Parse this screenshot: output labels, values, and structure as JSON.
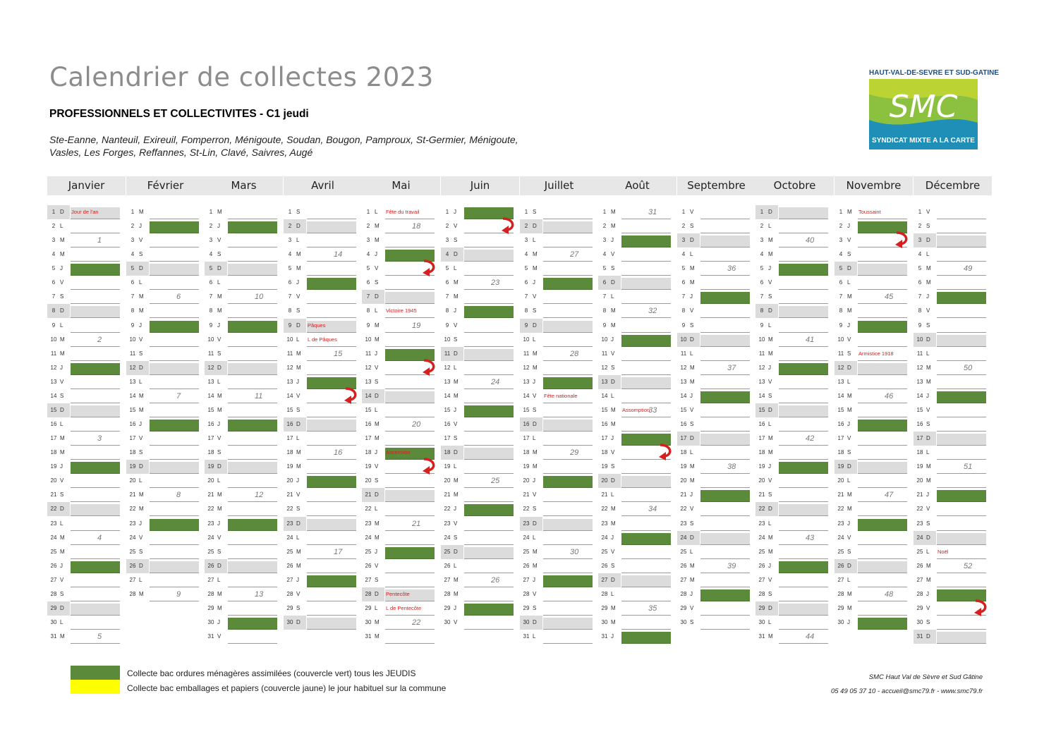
{
  "header": {
    "title": "Calendrier de collectes 2023",
    "subtitle": "PROFESSIONNELS ET COLLECTIVITES - C1 jeudi",
    "communes_line1": "Ste-Eanne, Nanteuil, Exireuil, Fomperron, Ménigoute, Soudan, Bougon, Pamproux, St-Germier, Ménigoute,",
    "communes_line2": "Vasles, Les Forges, Reffannes, St-Lin, Clavé, Saivres,  Augé"
  },
  "logo": {
    "top_text": "HAUT-VAL-DE-SEVRE ET SUD-GATINE",
    "name": "SMC",
    "bottom_text": "SYNDICAT MIXTE A LA CARTE"
  },
  "colors": {
    "collect_green": "#5b8a3a",
    "packaging_yellow": "#ffff00",
    "holiday_red": "#d62020",
    "title_grey": "#8c8c8c"
  },
  "months": [
    {
      "name": "Janvier",
      "days": 31,
      "first_weekday": 6
    },
    {
      "name": "Février",
      "days": 28,
      "first_weekday": 2
    },
    {
      "name": "Mars",
      "days": 31,
      "first_weekday": 2
    },
    {
      "name": "Avril",
      "days": 30,
      "first_weekday": 5
    },
    {
      "name": "Mai",
      "days": 31,
      "first_weekday": 0
    },
    {
      "name": "Juin",
      "days": 30,
      "first_weekday": 3
    },
    {
      "name": "Juillet",
      "days": 31,
      "first_weekday": 5
    },
    {
      "name": "Août",
      "days": 31,
      "first_weekday": 1
    },
    {
      "name": "Septembre",
      "days": 30,
      "first_weekday": 4
    },
    {
      "name": "Octobre",
      "days": 31,
      "first_weekday": 6
    },
    {
      "name": "Novembre",
      "days": 30,
      "first_weekday": 2
    },
    {
      "name": "Décembre",
      "days": 31,
      "first_weekday": 4
    }
  ],
  "day_letters": [
    "L",
    "M",
    "M",
    "J",
    "V",
    "S",
    "D"
  ],
  "holidays": [
    {
      "month": 0,
      "day": 1,
      "label": "Jour de l'an"
    },
    {
      "month": 3,
      "day": 9,
      "label": "Pâques"
    },
    {
      "month": 3,
      "day": 10,
      "label": "L de Pâques"
    },
    {
      "month": 4,
      "day": 1,
      "label": "Fête du travail"
    },
    {
      "month": 4,
      "day": 8,
      "label": "Victoire 1945"
    },
    {
      "month": 4,
      "day": 18,
      "label": "Ascension"
    },
    {
      "month": 4,
      "day": 28,
      "label": "Pentecôte"
    },
    {
      "month": 4,
      "day": 29,
      "label": "L de Pentecôte"
    },
    {
      "month": 6,
      "day": 14,
      "label": "Fête nationale"
    },
    {
      "month": 7,
      "day": 15,
      "label": "Assomption"
    },
    {
      "month": 10,
      "day": 1,
      "label": "Toussaint"
    },
    {
      "month": 10,
      "day": 11,
      "label": "Armistice 1918"
    },
    {
      "month": 11,
      "day": 25,
      "label": "Noël"
    }
  ],
  "shifted_collections": [
    {
      "month": 3,
      "day": 14
    },
    {
      "month": 4,
      "day": 5
    },
    {
      "month": 4,
      "day": 12
    },
    {
      "month": 4,
      "day": 19
    },
    {
      "month": 5,
      "day": 2
    },
    {
      "month": 7,
      "day": 18
    },
    {
      "month": 10,
      "day": 3
    },
    {
      "month": 11,
      "day": 29
    }
  ],
  "legend": {
    "green_text": "Collecte bac ordures ménagères assimilées (couvercle vert) tous les JEUDIS",
    "yellow_text": "Collecte bac emballages et papiers (couvercle jaune) le jour habituel sur la commune"
  },
  "contact": {
    "line1": "SMC Haut Val de Sèvre et Sud Gâtine",
    "line2": "05 49 05 37 10 - accueil@smc79.fr - www.smc79.fr"
  }
}
